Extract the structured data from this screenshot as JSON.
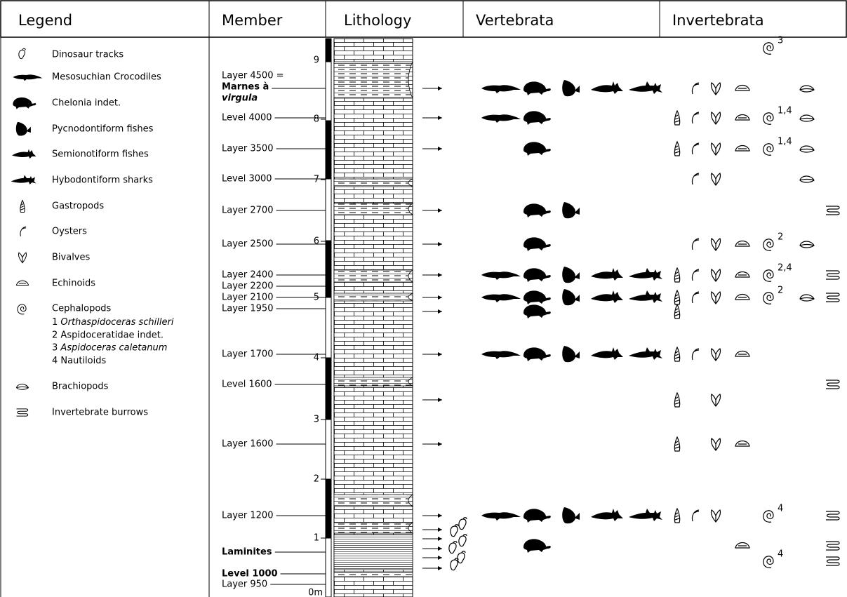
{
  "header": {
    "legend": "Legend",
    "member": "Member",
    "lithology": "Lithology",
    "vertebrata": "Vertebrata",
    "invertebrata": "Invertebrata"
  },
  "legend": [
    {
      "label": "Dinosaur tracks"
    },
    {
      "label": "Mesosuchian Crocodiles"
    },
    {
      "label": "Chelonia indet."
    },
    {
      "label": "Pycnodontiform fishes"
    },
    {
      "label": "Semionotiform fishes"
    },
    {
      "label": "Hybodontiform sharks"
    },
    {
      "label": "Gastropods"
    },
    {
      "label": "Oysters"
    },
    {
      "label": "Bivalves"
    },
    {
      "label": "Echinoids"
    },
    {
      "label": "Cephalopods"
    },
    {
      "label": "Brachiopods"
    },
    {
      "label": "Invertebrate burrows"
    }
  ],
  "cephalopod_notes": [
    {
      "number": "1",
      "name": "Orthaspidoceras schilleri"
    },
    {
      "number": "2",
      "name": "Aspidoceratidae indet."
    },
    {
      "number": "3",
      "name": "Aspidoceras caletanum"
    },
    {
      "number": "4",
      "name": "Nautiloids"
    }
  ],
  "members": [
    "9",
    "8",
    "7",
    "6",
    "5",
    "4",
    "3",
    "2",
    "1",
    "0m"
  ],
  "layers": [
    {
      "label": "Layer 4500 =",
      "name": [
        "Marnes à",
        "virgula"
      ]
    },
    {
      "label": "Level 4000"
    },
    {
      "label": "Layer 3500"
    },
    {
      "label": "Level 3000"
    },
    {
      "label": "Layer 2700"
    },
    {
      "label": "Layer 2500"
    },
    {
      "label": "Layer 2400"
    },
    {
      "label": "Layer 2200"
    },
    {
      "label": "Layer 2100"
    },
    {
      "label": "Layer 1950"
    },
    {
      "label": "Layer 1700"
    },
    {
      "label": "Level 1600"
    },
    {
      "label": "Layer 1600"
    },
    {
      "label": "Layer 1200"
    },
    {
      "label": "Laminites"
    },
    {
      "label": "Level 1000"
    },
    {
      "label": "Layer 950"
    }
  ],
  "cephalopod_labels": [
    "3",
    "1,4",
    "1,4",
    "2",
    "2,4",
    "2",
    "4",
    "4"
  ]
}
